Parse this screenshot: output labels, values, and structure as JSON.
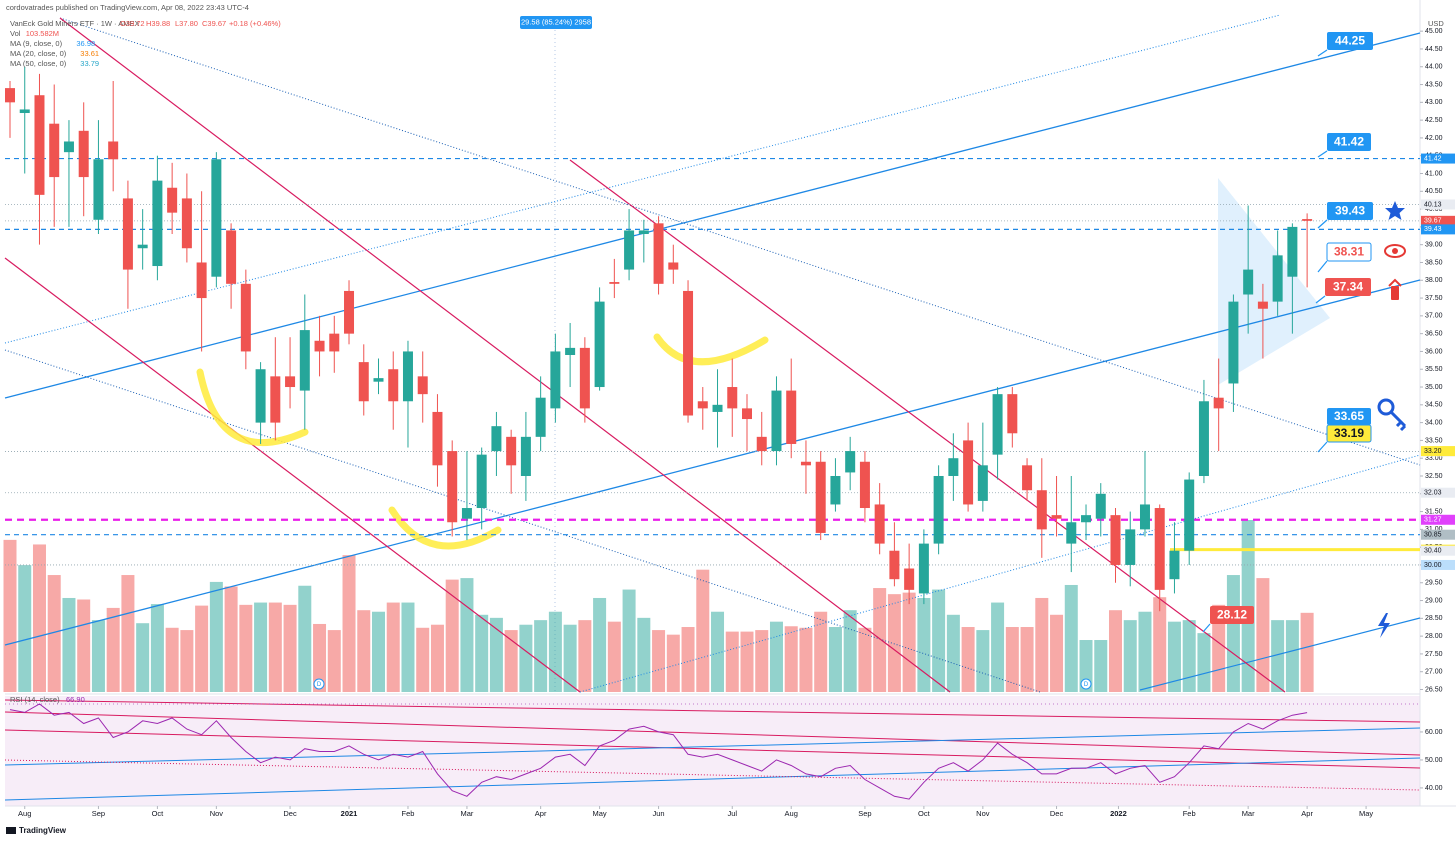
{
  "chart_data": {
    "type": "candlestick",
    "header": {
      "publisher": "cordovatrades published on TradingView.com, Apr 08, 2022 23:43 UTC-4",
      "symbol": "VanEck Gold Miners ETF · 1W · AMEX",
      "open": "O39.72",
      "high": "H39.88",
      "low": "L37.80",
      "close": "C39.67",
      "change": "+0.18 (+0.46%)"
    },
    "legend": [
      {
        "name": "Vol",
        "value": "103.582M",
        "color": "#ef5350"
      },
      {
        "name": "MA (9, close, 0)",
        "value": "36.98",
        "color": "#2196f3"
      },
      {
        "name": "MA (20, close, 0)",
        "value": "33.61",
        "color": "#f57c00"
      },
      {
        "name": "MA (50, close, 0)",
        "value": "33.79",
        "color": "#26a6c9"
      }
    ],
    "axis_unit": "USD",
    "measure": "29.58 (85.24%) 2958",
    "brand": "TradingView",
    "events": [
      "D",
      "D"
    ],
    "up_color": "#26a69a",
    "down_color": "#ef5350",
    "candles": {
      "open": [
        43.4,
        42.7,
        43.2,
        42.4,
        41.6,
        42.2,
        39.7,
        41.9,
        40.3,
        38.9,
        38.4,
        40.6,
        40.3,
        38.5,
        38.1,
        39.4,
        37.9,
        34.0,
        35.3,
        35.3,
        34.9,
        36.3,
        36.5,
        37.7,
        35.7,
        35.15,
        35.5,
        34.6,
        35.3,
        34.3,
        33.2,
        31.3,
        31.6,
        33.2,
        33.6,
        32.5,
        33.6,
        34.4,
        35.9,
        36.1,
        35.0,
        37.95,
        38.3,
        39.3,
        39.6,
        38.5,
        37.7,
        34.6,
        34.3,
        35.0,
        34.4,
        33.6,
        33.2,
        34.9,
        32.9,
        32.9,
        31.7,
        32.6,
        32.9,
        31.7,
        30.4,
        29.9,
        29.2,
        30.6,
        32.5,
        33.5,
        31.8,
        33.1,
        34.8,
        32.8,
        32.1,
        31.4,
        30.6,
        31.2,
        31.3,
        31.4,
        30.0,
        31.0,
        31.6,
        29.6,
        30.4,
        32.5,
        34.7,
        35.1,
        37.6,
        37.4,
        37.4,
        38.1,
        39.72
      ],
      "high": [
        43.6,
        44.0,
        43.8,
        43.5,
        42.5,
        43.0,
        42.5,
        43.6,
        40.8,
        40.0,
        41.5,
        41.3,
        41.0,
        40.5,
        41.6,
        39.6,
        38.3,
        35.7,
        36.4,
        36.4,
        37.6,
        37.0,
        37.0,
        38.0,
        36.2,
        35.8,
        36.0,
        36.3,
        36.0,
        34.8,
        33.5,
        33.2,
        33.3,
        34.3,
        33.8,
        34.3,
        35.3,
        36.5,
        36.8,
        36.4,
        37.8,
        38.6,
        40.0,
        39.7,
        39.8,
        39.0,
        38.0,
        35.0,
        35.5,
        35.8,
        34.8,
        34.3,
        35.3,
        35.8,
        33.5,
        33.2,
        33.0,
        33.6,
        33.2,
        32.3,
        31.2,
        30.6,
        31.0,
        32.8,
        33.7,
        34.0,
        34.0,
        35.0,
        35.0,
        33.0,
        33.0,
        32.5,
        32.5,
        31.7,
        32.3,
        31.6,
        31.5,
        33.2,
        31.7,
        31.2,
        32.6,
        35.2,
        35.8,
        37.6,
        40.1,
        37.9,
        39.4,
        39.6,
        39.88
      ],
      "low": [
        42.0,
        41.0,
        39.0,
        39.5,
        39.5,
        39.8,
        39.3,
        40.5,
        37.2,
        38.3,
        38.0,
        39.3,
        38.5,
        36.0,
        37.8,
        37.2,
        35.5,
        33.4,
        33.5,
        34.4,
        33.8,
        35.3,
        35.4,
        36.2,
        34.2,
        34.8,
        33.8,
        33.3,
        34.0,
        32.2,
        30.8,
        30.7,
        31.0,
        32.5,
        32.0,
        31.8,
        33.2,
        34.0,
        35.0,
        34.0,
        34.9,
        37.5,
        38.0,
        38.5,
        37.6,
        37.9,
        34.0,
        33.8,
        33.3,
        33.6,
        33.2,
        32.8,
        32.8,
        33.0,
        32.0,
        30.7,
        31.5,
        32.1,
        31.2,
        30.3,
        29.4,
        28.9,
        28.9,
        30.3,
        31.8,
        31.5,
        31.5,
        32.4,
        33.3,
        31.8,
        30.2,
        30.8,
        29.8,
        30.7,
        30.8,
        29.5,
        29.4,
        30.8,
        28.7,
        29.2,
        30.0,
        32.3,
        33.2,
        34.3,
        36.5,
        35.8,
        37.0,
        36.5,
        37.8
      ],
      "close": [
        43.0,
        42.8,
        40.4,
        40.9,
        41.9,
        40.9,
        41.4,
        41.4,
        38.3,
        39.0,
        40.8,
        39.9,
        38.9,
        37.5,
        41.4,
        37.9,
        36.0,
        35.5,
        34.0,
        35.0,
        36.6,
        36.0,
        36.0,
        36.5,
        34.6,
        35.25,
        34.6,
        36.0,
        34.8,
        32.8,
        31.2,
        31.6,
        33.1,
        33.9,
        32.8,
        33.6,
        34.7,
        36.0,
        36.1,
        34.4,
        37.4,
        37.9,
        39.4,
        39.4,
        37.9,
        38.3,
        34.2,
        34.4,
        34.5,
        34.4,
        34.1,
        33.2,
        34.9,
        33.4,
        32.8,
        30.9,
        32.5,
        33.2,
        31.6,
        30.6,
        29.6,
        29.3,
        30.6,
        32.5,
        33.0,
        31.7,
        32.8,
        34.8,
        33.7,
        32.1,
        31.0,
        31.3,
        31.2,
        31.4,
        32.0,
        30.0,
        31.0,
        31.7,
        29.3,
        30.4,
        32.4,
        34.6,
        34.4,
        37.4,
        38.3,
        37.2,
        38.7,
        39.5,
        39.67
      ]
    },
    "volume": [
      199,
      166,
      193,
      153,
      123,
      121,
      94,
      110,
      153,
      90,
      115,
      84,
      81,
      113,
      144,
      138,
      114,
      117,
      117,
      114,
      139,
      89,
      81,
      179,
      107,
      105,
      117,
      117,
      84,
      88,
      147,
      149,
      101,
      97,
      81,
      88,
      94,
      105,
      88,
      94,
      123,
      92,
      134,
      97,
      81,
      75,
      85,
      160,
      105,
      79,
      79,
      81,
      92,
      86,
      84,
      105,
      85,
      107,
      84,
      136,
      128,
      130,
      123,
      134,
      101,
      85,
      81,
      117,
      85,
      85,
      123,
      101,
      140,
      68,
      68,
      107,
      94,
      105,
      124,
      92,
      94,
      77,
      114,
      153,
      225,
      149,
      94,
      94,
      103.582
    ],
    "ylim": [
      26.43,
      45.37
    ],
    "yticks": [
      {
        "value": 26.5,
        "label": "26.50"
      },
      {
        "value": 27,
        "label": "27.00"
      },
      {
        "value": 27.5,
        "label": "27.50"
      },
      {
        "value": 28,
        "label": "28.00"
      },
      {
        "value": 28.5,
        "label": "28.50"
      },
      {
        "value": 29,
        "label": "29.00"
      },
      {
        "value": 29.5,
        "label": "29.50"
      },
      {
        "value": 30,
        "label": "30.00"
      },
      {
        "value": 30.5,
        "label": "30.50"
      },
      {
        "value": 31,
        "label": "31.00"
      },
      {
        "value": 31.5,
        "label": "31.50"
      },
      {
        "value": 32,
        "label": "32.00"
      },
      {
        "value": 32.5,
        "label": "32.50"
      },
      {
        "value": 33,
        "label": "33.00"
      },
      {
        "value": 33.5,
        "label": "33.50"
      },
      {
        "value": 34,
        "label": "34.00"
      },
      {
        "value": 34.5,
        "label": "34.50"
      },
      {
        "value": 35,
        "label": "35.00"
      },
      {
        "value": 35.5,
        "label": "35.50"
      },
      {
        "value": 36,
        "label": "36.00"
      },
      {
        "value": 36.5,
        "label": "36.50"
      },
      {
        "value": 37,
        "label": "37.00"
      },
      {
        "value": 37.5,
        "label": "37.50"
      },
      {
        "value": 38,
        "label": "38.00"
      },
      {
        "value": 38.5,
        "label": "38.50"
      },
      {
        "value": 39,
        "label": "39.00"
      },
      {
        "value": 39.5,
        "label": "39.50"
      },
      {
        "value": 40,
        "label": "40.00"
      },
      {
        "value": 40.5,
        "label": "40.50"
      },
      {
        "value": 41,
        "label": "41.00"
      },
      {
        "value": 41.5,
        "label": "41.50"
      },
      {
        "value": 42,
        "label": "42.00"
      },
      {
        "value": 42.5,
        "label": "42.50"
      },
      {
        "value": 43,
        "label": "43.00"
      },
      {
        "value": 43.5,
        "label": "43.50"
      },
      {
        "value": 44,
        "label": "44.00"
      },
      {
        "value": 44.5,
        "label": "44.50"
      },
      {
        "value": 45,
        "label": "45.00"
      }
    ],
    "xticks": [
      {
        "value": 1,
        "label": "Aug"
      },
      {
        "value": 6,
        "label": "Sep"
      },
      {
        "value": 10,
        "label": "Oct"
      },
      {
        "value": 14,
        "label": "Nov"
      },
      {
        "value": 19,
        "label": "Dec"
      },
      {
        "value": 23,
        "label": "2021"
      },
      {
        "value": 27,
        "label": "Feb"
      },
      {
        "value": 31,
        "label": "Mar"
      },
      {
        "value": 36,
        "label": "Apr"
      },
      {
        "value": 40,
        "label": "May"
      },
      {
        "value": 44,
        "label": "Jun"
      },
      {
        "value": 49,
        "label": "Jul"
      },
      {
        "value": 53,
        "label": "Aug"
      },
      {
        "value": 58,
        "label": "Sep"
      },
      {
        "value": 62,
        "label": "Oct"
      },
      {
        "value": 66,
        "label": "Nov"
      },
      {
        "value": 71,
        "label": "Dec"
      },
      {
        "value": 75.2,
        "label": "2022"
      },
      {
        "value": 80,
        "label": "Feb"
      },
      {
        "value": 84,
        "label": "Mar"
      },
      {
        "value": 88,
        "label": "Apr"
      },
      {
        "value": 92,
        "label": "May"
      }
    ],
    "grid": false,
    "price_labels": [
      {
        "value": 40.13,
        "label": "40.13",
        "color": "#e9ecf2",
        "text_color": "#131722",
        "line": "dotted"
      },
      {
        "value": 39.67,
        "label": "39.67",
        "color": "#ef5350",
        "text_color": "#ffffff",
        "line": "dotted"
      },
      {
        "value": 39.43,
        "label": "39.43",
        "color": "#2196f3",
        "text_color": "#ffffff",
        "line": "dashed"
      },
      {
        "value": 41.42,
        "label": "41.42",
        "color": "#2196f3",
        "text_color": "#ffffff",
        "line": "dashed"
      },
      {
        "value": 33.19,
        "label": "33.19",
        "color": "#e9ecf2",
        "text_color": "#131722",
        "line": "dotted"
      },
      {
        "value": 33.2,
        "label": "33.20",
        "color": "#ffeb3b",
        "text_color": "#131722",
        "line": "none"
      },
      {
        "value": 32.03,
        "label": "32.03",
        "color": "#e9ecf2",
        "text_color": "#131722",
        "line": "dotted"
      },
      {
        "value": 31.27,
        "label": "31.27",
        "color": "#e040fb",
        "text_color": "#ffffff",
        "line": "magenta"
      },
      {
        "value": 30.85,
        "label": "30.85",
        "color": "#b0bec5",
        "text_color": "#131722",
        "line": "dashed"
      },
      {
        "value": 30.43,
        "label": "30.43",
        "color": "#ffeb3b",
        "text_color": "#131722",
        "line": "yellow"
      },
      {
        "value": 30.4,
        "label": "30.40",
        "color": "#e9ecf2",
        "text_color": "#131722",
        "line": "none"
      },
      {
        "value": 30,
        "label": "30.00",
        "color": "#bbdefb",
        "text_color": "#131722",
        "line": "dotted"
      }
    ],
    "annotations": [
      "44.25",
      "41.42",
      "39.43",
      "38.31",
      "37.34",
      "33.65",
      "33.19",
      "28.12"
    ],
    "rsi": {
      "label": "RSI (14, close)",
      "value": "66.90",
      "color": "#9c27b0",
      "values": [
        68,
        67,
        70,
        66,
        67,
        63,
        65,
        58,
        60,
        64,
        63,
        65,
        61,
        59,
        64,
        58,
        53,
        49,
        51,
        50,
        54,
        53,
        53,
        55,
        52,
        50,
        52,
        51,
        53,
        45,
        39,
        37,
        42,
        44,
        43,
        45,
        47,
        51,
        52,
        48,
        55,
        57,
        61,
        62,
        60,
        59,
        52,
        51,
        52,
        50,
        48,
        46,
        50,
        48,
        45,
        44,
        47,
        48,
        43,
        40,
        37,
        36,
        42,
        47,
        49,
        46,
        50,
        56,
        52,
        49,
        45,
        45,
        47,
        47,
        49,
        45,
        47,
        48,
        42,
        44,
        49,
        55,
        54,
        60,
        63,
        61,
        64,
        66,
        66.9
      ],
      "ylim": [
        33.9,
        73.2
      ],
      "yticks": [
        {
          "value": 60,
          "label": "60.00"
        },
        {
          "value": 50,
          "label": "50.00"
        },
        {
          "value": 40,
          "label": "40.00"
        }
      ]
    }
  }
}
